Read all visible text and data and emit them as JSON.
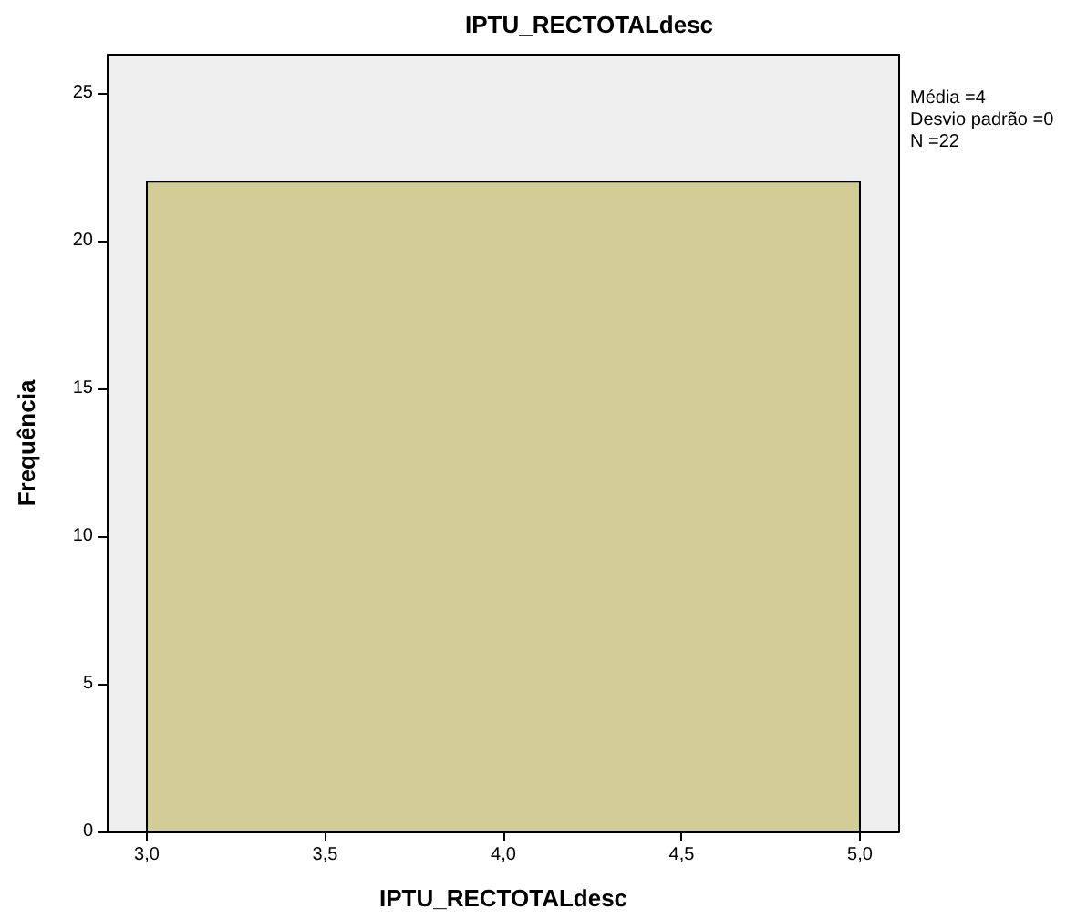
{
  "chart_data": {
    "type": "histogram",
    "title": "IPTU_RECTOTALdesc",
    "xlabel": "IPTU_RECTOTALdesc",
    "ylabel": "Frequência",
    "bins": [
      3.0,
      5.0
    ],
    "values": [
      22
    ],
    "color": "#d2cd96",
    "xlim": [
      2.89,
      5.11
    ],
    "xticks": [
      {
        "value": 3.0,
        "label": "3,0"
      },
      {
        "value": 3.5,
        "label": "3,5"
      },
      {
        "value": 4.0,
        "label": "4,0"
      },
      {
        "value": 4.5,
        "label": "4,5"
      },
      {
        "value": 5.0,
        "label": "5,0"
      }
    ],
    "ylim": [
      0,
      26.3
    ],
    "yticks": [
      0,
      5,
      10,
      15,
      20,
      25
    ],
    "grid": false,
    "annotations": [
      "Média =4",
      "Desvio padrão =0",
      "N =22"
    ]
  }
}
